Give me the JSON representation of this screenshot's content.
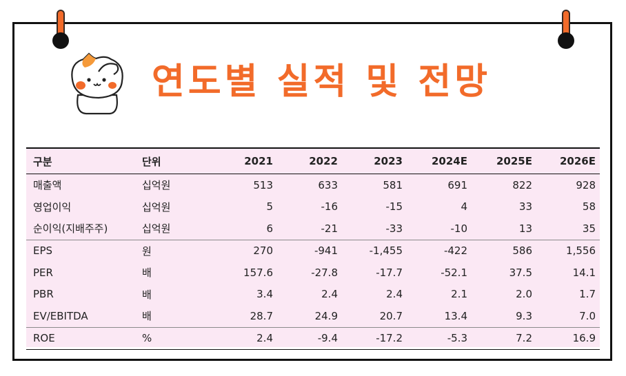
{
  "title": "연도별 실적 및 전망",
  "table": {
    "headers": [
      "구분",
      "단위",
      "2021",
      "2022",
      "2023",
      "2024E",
      "2025E",
      "2026E"
    ],
    "rows": [
      {
        "label": "매출액",
        "unit": "십억원",
        "values": [
          "513",
          "633",
          "581",
          "691",
          "822",
          "928"
        ]
      },
      {
        "label": "영업이익",
        "unit": "십억원",
        "values": [
          "5",
          "-16",
          "-15",
          "4",
          "33",
          "58"
        ]
      },
      {
        "label": "순이익(지배주주)",
        "unit": "십억원",
        "values": [
          "6",
          "-21",
          "-33",
          "-10",
          "13",
          "35"
        ]
      },
      {
        "label": "EPS",
        "unit": "원",
        "values": [
          "270",
          "-941",
          "-1,455",
          "-422",
          "586",
          "1,556"
        ]
      },
      {
        "label": "PER",
        "unit": "배",
        "values": [
          "157.6",
          "-27.8",
          "-17.7",
          "-52.1",
          "37.5",
          "14.1"
        ]
      },
      {
        "label": "PBR",
        "unit": "배",
        "values": [
          "3.4",
          "2.4",
          "2.4",
          "2.1",
          "2.0",
          "1.7"
        ]
      },
      {
        "label": "EV/EBITDA",
        "unit": "배",
        "values": [
          "28.7",
          "24.9",
          "20.7",
          "13.4",
          "9.3",
          "7.0"
        ]
      },
      {
        "label": "ROE",
        "unit": "%",
        "values": [
          "2.4",
          "-9.4",
          "-17.2",
          "-5.3",
          "7.2",
          "16.9"
        ]
      }
    ]
  },
  "colors": {
    "accent": "#f26b2a",
    "table_bg": "#fbe8f4",
    "border": "#111111"
  },
  "icons": [
    "cat-mascot-icon",
    "binder-ring-icon"
  ]
}
